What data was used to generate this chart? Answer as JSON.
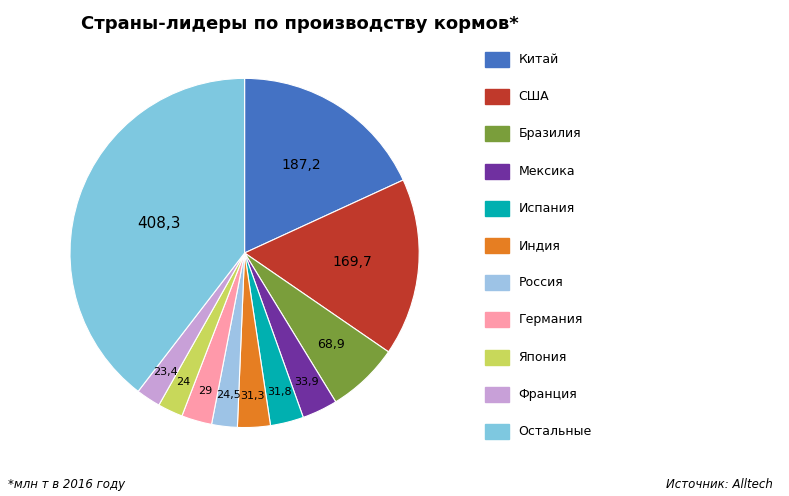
{
  "title": "Страны-лидеры по производству кормов*",
  "footnote": "*млн т в 2016 году",
  "source": "Источник: Alltech",
  "labels": [
    "Китай",
    "США",
    "Бразилия",
    "Мексика",
    "Испания",
    "Индия",
    "Россия",
    "Германия",
    "Япония",
    "Франция",
    "Остальные"
  ],
  "values": [
    187.2,
    169.7,
    68.9,
    33.9,
    31.8,
    31.3,
    24.5,
    29.0,
    24.0,
    23.4,
    408.3
  ],
  "colors": [
    "#4472C4",
    "#C0392B",
    "#7A9E3B",
    "#7030A0",
    "#00B0B0",
    "#E67E22",
    "#9DC3E6",
    "#FF99AA",
    "#C8D85A",
    "#C8A0D8",
    "#7EC8E0"
  ],
  "display_values": [
    "187,2",
    "169,7",
    "68,9",
    "33,9",
    "31,8",
    "31,3",
    "24,5",
    "29",
    "24",
    "23,4",
    "408,3"
  ],
  "startangle": 90,
  "background_color": "#FFFFFF",
  "label_radii": [
    0.6,
    0.62,
    0.72,
    0.82,
    0.82,
    0.82,
    0.82,
    0.82,
    0.82,
    0.82,
    0.52
  ],
  "label_fontsizes": [
    10,
    10,
    9,
    8,
    8,
    8,
    8,
    8,
    8,
    8,
    11
  ]
}
